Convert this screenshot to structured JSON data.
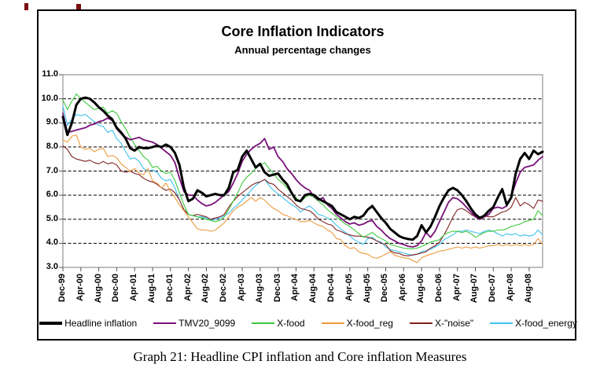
{
  "figure": {
    "title": "Core Inflation Indicators",
    "subtitle": "Annual percentage changes",
    "caption": "Graph 21: Headline CPI inflation and Core inflation Measures"
  },
  "chart_data": {
    "type": "line",
    "title": "Core Inflation Indicators",
    "subtitle": "Annual percentage changes",
    "xlabel": "",
    "ylabel": "",
    "ylim": [
      3.0,
      11.0
    ],
    "y_ticks": [
      11.0,
      10.0,
      9.0,
      8.0,
      7.0,
      6.0,
      5.0,
      4.0,
      3.0
    ],
    "y_tick_labels": [
      "11.0",
      "10.0",
      "9.0",
      "8.0",
      "7.0",
      "6.0",
      "5.0",
      "4.0",
      "3.0"
    ],
    "y_gridlines": [
      4.0,
      5.0,
      6.0,
      7.0,
      8.0,
      9.0,
      10.0
    ],
    "grid": "horizontal-dashed",
    "legend_position": "bottom",
    "x_frequency": "monthly, Dec-99 to Nov-08, labels every 4 months",
    "x_tick_step": 4,
    "x_tick_labels": [
      "Dec-99",
      "Apr-00",
      "Aug-00",
      "Dec-00",
      "Apr-01",
      "Aug-01",
      "Dec-01",
      "Apr-02",
      "Aug-02",
      "Dec-02",
      "Apr-03",
      "Aug-03",
      "Dec-03",
      "Apr-04",
      "Aug-04",
      "Dec-04",
      "Apr-05",
      "Aug-05",
      "Dec-05",
      "Apr-06",
      "Aug-06",
      "Dec-06",
      "Apr-07",
      "Aug-07",
      "Dec-07",
      "Apr-08",
      "Aug-08"
    ],
    "series": [
      {
        "name": "Headline inflation",
        "color": "#000000",
        "width": 3,
        "values": [
          9.25,
          8.5,
          9.0,
          9.75,
          10.0,
          10.05,
          10.0,
          9.85,
          9.65,
          9.5,
          9.3,
          9.15,
          8.8,
          8.6,
          8.35,
          7.95,
          7.85,
          8.0,
          7.95,
          7.95,
          8.0,
          8.05,
          8.0,
          8.1,
          8.0,
          7.75,
          7.25,
          6.3,
          5.75,
          5.85,
          6.2,
          6.1,
          5.95,
          6.0,
          6.05,
          6.0,
          6.0,
          6.3,
          6.95,
          7.05,
          7.6,
          7.85,
          7.5,
          7.15,
          7.3,
          6.95,
          6.8,
          6.85,
          6.9,
          6.65,
          6.45,
          6.1,
          5.8,
          5.75,
          6.0,
          6.05,
          6.0,
          5.85,
          5.75,
          5.65,
          5.55,
          5.3,
          5.2,
          5.1,
          5.0,
          5.1,
          5.05,
          5.15,
          5.4,
          5.55,
          5.3,
          5.05,
          4.85,
          4.6,
          4.45,
          4.3,
          4.22,
          4.18,
          4.15,
          4.3,
          4.75,
          4.45,
          4.7,
          5.1,
          5.55,
          5.9,
          6.2,
          6.3,
          6.2,
          6.0,
          5.75,
          5.45,
          5.2,
          5.05,
          5.15,
          5.35,
          5.5,
          5.9,
          6.25,
          5.6,
          5.9,
          6.9,
          7.5,
          7.75,
          7.5,
          7.85,
          7.7,
          7.8
        ]
      },
      {
        "name": "TMV20_9099",
        "color": "#7a117a",
        "width": 1.8,
        "values": [
          9.4,
          8.6,
          8.65,
          8.7,
          8.75,
          8.8,
          8.9,
          8.95,
          9.05,
          9.1,
          9.2,
          9.1,
          8.75,
          8.55,
          8.4,
          8.3,
          8.35,
          8.4,
          8.3,
          8.25,
          8.2,
          8.1,
          7.95,
          7.8,
          7.65,
          7.35,
          6.7,
          6.15,
          6.0,
          6.0,
          5.8,
          5.65,
          5.55,
          5.6,
          5.7,
          5.85,
          6.0,
          6.15,
          6.5,
          6.9,
          7.4,
          7.7,
          7.9,
          8.05,
          8.15,
          8.35,
          7.9,
          8.0,
          7.6,
          7.4,
          7.1,
          6.9,
          6.65,
          6.45,
          6.3,
          6.2,
          5.95,
          5.8,
          5.9,
          5.6,
          5.45,
          5.2,
          5.05,
          4.9,
          4.8,
          4.85,
          4.75,
          4.8,
          4.9,
          4.95,
          4.7,
          4.55,
          4.35,
          4.2,
          4.1,
          4.0,
          3.95,
          3.88,
          3.85,
          3.9,
          4.1,
          4.45,
          4.25,
          4.5,
          4.9,
          5.3,
          5.7,
          5.9,
          5.85,
          5.7,
          5.5,
          5.3,
          5.1,
          5.0,
          5.1,
          5.2,
          5.45,
          5.5,
          5.45,
          5.55,
          5.95,
          6.5,
          6.95,
          7.15,
          7.2,
          7.25,
          7.45,
          7.6
        ]
      },
      {
        "name": "X-food",
        "color": "#3dc93d",
        "width": 1.1,
        "values": [
          9.95,
          9.55,
          9.9,
          10.2,
          10.0,
          9.85,
          9.7,
          9.55,
          9.6,
          9.65,
          9.4,
          9.5,
          9.4,
          9.05,
          8.75,
          8.4,
          8.1,
          7.85,
          7.6,
          7.45,
          7.15,
          7.2,
          7.0,
          6.9,
          6.95,
          6.6,
          6.1,
          5.6,
          5.2,
          5.15,
          5.1,
          5.05,
          5.0,
          4.95,
          4.9,
          4.95,
          5.1,
          5.4,
          5.75,
          6.1,
          6.5,
          6.75,
          6.9,
          7.1,
          7.25,
          7.35,
          7.1,
          6.9,
          6.65,
          6.5,
          6.3,
          6.1,
          5.9,
          5.7,
          5.9,
          6.0,
          5.9,
          5.75,
          5.6,
          5.4,
          5.25,
          5.1,
          4.95,
          4.8,
          4.7,
          4.55,
          4.4,
          4.25,
          4.35,
          4.45,
          4.3,
          4.2,
          4.1,
          3.95,
          3.9,
          3.85,
          3.8,
          3.78,
          3.77,
          3.8,
          3.87,
          3.95,
          4.05,
          4.1,
          4.15,
          4.35,
          4.45,
          4.5,
          4.5,
          4.45,
          4.5,
          4.4,
          4.25,
          4.35,
          4.45,
          4.5,
          4.5,
          4.55,
          4.55,
          4.6,
          4.7,
          4.75,
          4.8,
          4.9,
          4.95,
          5.0,
          5.35,
          5.15
        ]
      },
      {
        "name": "X-food_reg",
        "color": "#ec9a3c",
        "width": 1.1,
        "values": [
          8.3,
          8.2,
          8.45,
          8.5,
          8.0,
          7.9,
          7.95,
          7.8,
          7.9,
          7.95,
          7.6,
          7.65,
          7.55,
          7.3,
          7.15,
          7.0,
          7.1,
          6.9,
          6.85,
          7.1,
          6.6,
          6.5,
          6.3,
          6.5,
          6.15,
          5.9,
          5.6,
          5.35,
          5.1,
          4.85,
          4.6,
          4.55,
          4.55,
          4.5,
          4.55,
          4.7,
          4.85,
          5.1,
          5.35,
          5.5,
          5.6,
          5.75,
          5.9,
          5.75,
          5.9,
          5.8,
          5.6,
          5.45,
          5.35,
          5.2,
          5.15,
          5.05,
          5.0,
          4.9,
          4.9,
          4.95,
          4.85,
          4.75,
          4.7,
          4.55,
          4.45,
          4.2,
          4.15,
          3.9,
          3.78,
          3.82,
          3.65,
          3.58,
          3.55,
          3.42,
          3.38,
          3.45,
          3.55,
          3.65,
          3.5,
          3.45,
          3.4,
          3.38,
          3.28,
          3.2,
          3.4,
          3.48,
          3.55,
          3.6,
          3.68,
          3.7,
          3.75,
          3.8,
          3.85,
          3.8,
          3.85,
          3.8,
          3.85,
          3.8,
          3.85,
          3.9,
          3.9,
          3.95,
          3.9,
          3.95,
          3.9,
          3.95,
          3.9,
          3.95,
          3.9,
          3.95,
          4.2,
          3.95
        ]
      },
      {
        "name": "X-\"noise\"",
        "color": "#7e2020",
        "width": 1.1,
        "values": [
          8.05,
          7.9,
          7.6,
          7.5,
          7.45,
          7.4,
          7.45,
          7.35,
          7.3,
          7.4,
          7.3,
          7.35,
          7.25,
          7.0,
          6.95,
          7.0,
          6.9,
          6.85,
          6.7,
          6.6,
          6.55,
          6.45,
          6.3,
          6.2,
          6.25,
          6.1,
          5.8,
          5.4,
          5.2,
          5.15,
          5.2,
          5.15,
          5.1,
          5.0,
          5.05,
          5.1,
          5.2,
          5.5,
          5.75,
          5.95,
          6.1,
          6.25,
          6.4,
          6.5,
          6.55,
          6.65,
          6.5,
          6.45,
          6.25,
          6.1,
          5.95,
          5.8,
          5.6,
          5.45,
          5.4,
          5.35,
          5.2,
          5.0,
          4.9,
          4.8,
          4.75,
          4.55,
          4.5,
          4.4,
          4.35,
          4.3,
          4.3,
          4.28,
          4.25,
          4.2,
          4.1,
          4.0,
          3.95,
          3.7,
          3.6,
          3.58,
          3.5,
          3.48,
          3.52,
          3.55,
          3.6,
          3.65,
          3.8,
          3.9,
          4.05,
          4.35,
          4.7,
          5.1,
          5.4,
          5.45,
          5.35,
          5.2,
          5.1,
          5.1,
          5.15,
          5.1,
          5.1,
          5.2,
          5.3,
          5.35,
          5.5,
          5.9,
          5.55,
          5.7,
          5.6,
          5.45,
          5.8,
          5.75
        ]
      },
      {
        "name": "X-food_energy",
        "color": "#3ec1ed",
        "width": 1.1,
        "values": [
          9.7,
          8.9,
          9.15,
          9.35,
          9.3,
          9.35,
          9.2,
          9.05,
          8.9,
          8.85,
          8.6,
          8.7,
          8.35,
          8.15,
          7.8,
          7.5,
          7.55,
          7.4,
          7.1,
          7.0,
          7.05,
          6.95,
          6.7,
          6.6,
          6.65,
          6.3,
          5.8,
          5.4,
          5.2,
          5.15,
          5.1,
          5.1,
          5.05,
          4.95,
          5.0,
          5.05,
          5.15,
          5.25,
          5.45,
          5.6,
          5.8,
          6.0,
          6.2,
          6.4,
          6.55,
          6.65,
          6.4,
          6.2,
          6.05,
          5.9,
          5.75,
          5.6,
          5.5,
          5.3,
          5.45,
          5.55,
          5.4,
          5.2,
          5.15,
          5.05,
          4.95,
          4.75,
          4.6,
          4.45,
          4.3,
          4.15,
          4.05,
          3.95,
          4.2,
          4.25,
          4.1,
          4.05,
          3.85,
          3.75,
          3.7,
          3.65,
          3.6,
          3.55,
          3.5,
          3.55,
          3.65,
          3.7,
          3.75,
          3.85,
          3.95,
          4.15,
          4.25,
          4.35,
          4.5,
          4.5,
          4.55,
          4.5,
          4.45,
          4.4,
          4.5,
          4.55,
          4.5,
          4.4,
          4.3,
          4.4,
          4.35,
          4.4,
          4.3,
          4.35,
          4.3,
          4.35,
          4.55,
          4.35
        ]
      }
    ]
  }
}
